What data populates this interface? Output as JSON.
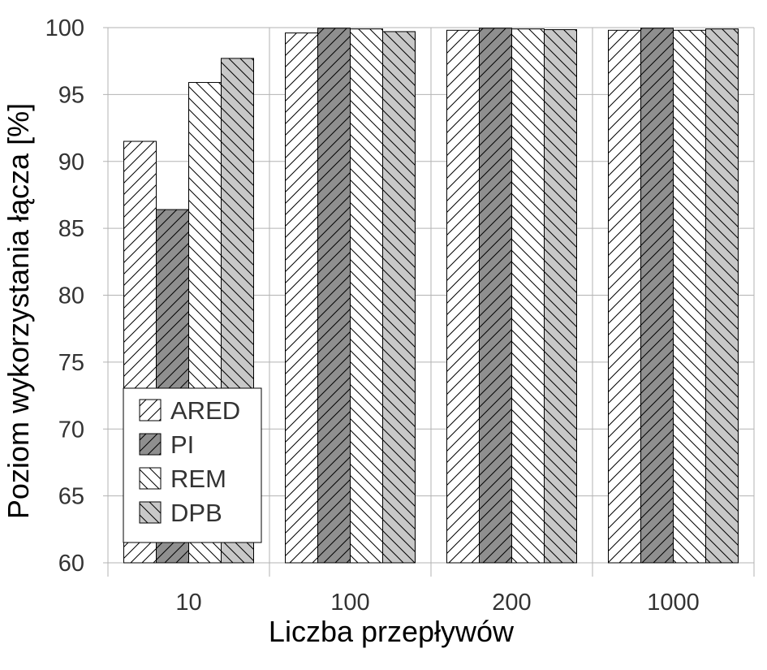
{
  "chart_data": {
    "type": "bar",
    "categories": [
      "10",
      "100",
      "200",
      "1000"
    ],
    "series": [
      {
        "name": "ARED",
        "values": [
          91.5,
          99.6,
          99.8,
          99.8
        ],
        "fill": "#ffffff",
        "pattern": "hatch-forward"
      },
      {
        "name": "PI",
        "values": [
          86.4,
          99.95,
          99.95,
          99.95
        ],
        "fill": "#8f8f8f",
        "pattern": "hatch-forward"
      },
      {
        "name": "REM",
        "values": [
          95.9,
          99.9,
          99.9,
          99.8
        ],
        "fill": "#ffffff",
        "pattern": "hatch-back"
      },
      {
        "name": "DPB",
        "values": [
          97.7,
          99.7,
          99.85,
          99.9
        ],
        "fill": "#c8c8c8",
        "pattern": "hatch-back"
      }
    ],
    "xlabel": "Liczba przepływów",
    "ylabel": "Poziom wykorzystania łącza [%]",
    "ylim": [
      60,
      100
    ],
    "yticks": [
      "60",
      "65",
      "70",
      "75",
      "80",
      "85",
      "90",
      "95",
      "100"
    ],
    "grid": true,
    "legend_position": "bottom-left"
  }
}
